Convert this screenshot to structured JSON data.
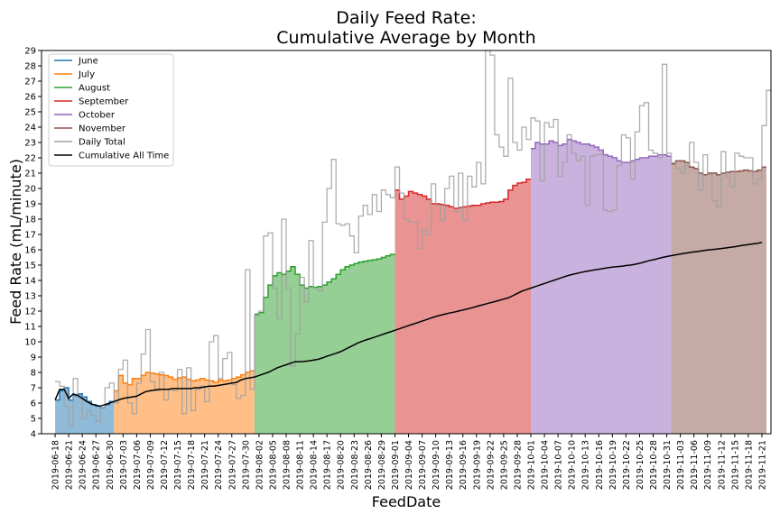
{
  "chart_data": {
    "type": "area",
    "title": [
      "Daily Feed Rate:",
      "Cumulative Average by Month"
    ],
    "xlabel": "FeedDate",
    "ylabel": "Feed Rate (mL/minute)",
    "ylim": [
      4,
      29
    ],
    "yticks": [
      4,
      5,
      6,
      7,
      8,
      9,
      10,
      11,
      12,
      13,
      14,
      15,
      16,
      17,
      18,
      19,
      20,
      21,
      22,
      23,
      24,
      25,
      26,
      27,
      28,
      29
    ],
    "xlim": [
      "2019-06-15",
      "2019-11-23"
    ],
    "xtick_start": "2019-06-18",
    "xtick_step_days": 3,
    "xtick_count": 53,
    "grid": false,
    "legend_position": "top-left",
    "series": [
      {
        "name": "June",
        "type": "cumulative-month",
        "color": "#1f77b4",
        "start": "2019-06-18",
        "values": [
          6.2,
          6.8,
          7.0,
          6.2,
          6.5,
          6.6,
          6.4,
          6.1,
          5.9,
          5.8,
          5.7,
          5.9,
          6.1
        ]
      },
      {
        "name": "July",
        "type": "cumulative-month",
        "color": "#ff7f0e",
        "start": "2019-07-01",
        "values": [
          6.8,
          7.8,
          7.3,
          7.2,
          7.6,
          7.6,
          7.8,
          8.0,
          7.95,
          7.9,
          7.85,
          7.8,
          7.7,
          7.55,
          7.65,
          7.7,
          7.55,
          7.45,
          7.5,
          7.6,
          7.5,
          7.45,
          7.35,
          7.5,
          7.45,
          7.5,
          7.6,
          7.7,
          7.85,
          8.0,
          8.1
        ]
      },
      {
        "name": "August",
        "type": "cumulative-month",
        "color": "#2ca02c",
        "start": "2019-08-01",
        "values": [
          11.8,
          11.9,
          12.9,
          13.7,
          14.3,
          14.5,
          14.4,
          14.6,
          14.9,
          14.4,
          13.7,
          13.5,
          13.6,
          13.55,
          13.6,
          13.7,
          13.9,
          14.1,
          14.4,
          14.7,
          14.9,
          15.0,
          15.1,
          15.2,
          15.25,
          15.3,
          15.35,
          15.4,
          15.5,
          15.6,
          15.7
        ]
      },
      {
        "name": "September",
        "type": "cumulative-month",
        "color": "#d62728",
        "start": "2019-09-01",
        "values": [
          19.9,
          19.3,
          19.5,
          19.8,
          19.7,
          19.6,
          19.5,
          19.3,
          19.0,
          19.0,
          18.95,
          18.9,
          18.8,
          18.7,
          18.75,
          18.8,
          18.85,
          18.9,
          18.9,
          19.0,
          19.05,
          19.1,
          19.1,
          19.15,
          19.3,
          19.9,
          20.2,
          20.35,
          20.4,
          20.6
        ]
      },
      {
        "name": "October",
        "type": "cumulative-month",
        "color": "#9467bd",
        "start": "2019-10-01",
        "values": [
          22.6,
          23.0,
          22.9,
          22.9,
          23.1,
          23.0,
          22.8,
          22.9,
          23.2,
          23.1,
          23.0,
          22.9,
          22.9,
          22.8,
          22.7,
          22.5,
          22.2,
          22.1,
          22.0,
          21.8,
          21.7,
          21.7,
          21.8,
          21.9,
          22.0,
          22.0,
          22.1,
          22.1,
          22.2,
          22.2,
          22.1
        ]
      },
      {
        "name": "November",
        "type": "cumulative-month",
        "color": "#8c564b",
        "start": "2019-11-01",
        "values": [
          21.6,
          21.8,
          21.8,
          21.7,
          21.4,
          21.3,
          21.0,
          20.9,
          21.0,
          21.0,
          20.9,
          21.0,
          21.05,
          21.1,
          21.1,
          21.15,
          21.2,
          21.15,
          21.1,
          21.2,
          21.4
        ]
      },
      {
        "name": "Daily Total",
        "type": "step",
        "color": "#a0a0a0",
        "start": "2019-06-18",
        "values": [
          7.4,
          7.1,
          5.8,
          4.5,
          7.6,
          6.4,
          5.0,
          5.5,
          5.2,
          4.8,
          5.7,
          7.0,
          7.3,
          6.0,
          8.2,
          8.8,
          6.0,
          5.3,
          7.3,
          9.2,
          10.8,
          7.4,
          6.8,
          8.0,
          6.2,
          6.9,
          6.8,
          8.2,
          5.3,
          8.3,
          5.5,
          6.9,
          7.1,
          6.1,
          10.0,
          10.4,
          7.6,
          8.9,
          9.3,
          7.2,
          6.3,
          6.5,
          14.7,
          6.9,
          11.7,
          12.0,
          16.9,
          17.1,
          13.5,
          11.5,
          18.0,
          13.5,
          8.4,
          10.5,
          14.2,
          12.6,
          16.6,
          13.5,
          13.3,
          17.8,
          20.0,
          21.9,
          17.7,
          17.6,
          17.7,
          16.9,
          15.8,
          18.2,
          18.9,
          18.3,
          19.6,
          18.5,
          19.9,
          19.6,
          19.4,
          21.4,
          19.7,
          18.0,
          17.8,
          17.8,
          16.1,
          17.3,
          17.0,
          20.3,
          18.9,
          17.9,
          20.0,
          20.8,
          18.5,
          21.0,
          17.9,
          20.8,
          20.1,
          21.7,
          20.3,
          29.0,
          28.7,
          23.5,
          22.7,
          22.1,
          27.2,
          23.0,
          22.5,
          24.0,
          23.2,
          24.6,
          24.4,
          20.5,
          24.3,
          24.0,
          24.5,
          20.8,
          21.7,
          23.5,
          22.3,
          21.8,
          22.1,
          18.9,
          22.1,
          22.2,
          22.2,
          18.6,
          18.5,
          18.6,
          21.5,
          23.5,
          23.3,
          20.6,
          23.7,
          25.4,
          25.6,
          22.5,
          22.3,
          22.0,
          28.1,
          22.3,
          21.7,
          21.3,
          21.0,
          21.5,
          23.0,
          21.7,
          19.9,
          22.2,
          20.9,
          19.2,
          18.8,
          22.4,
          20.8,
          20.1,
          22.3,
          22.1,
          22.0,
          22.0,
          20.3,
          20.6,
          24.1,
          26.4
        ]
      },
      {
        "name": "Cumulative All Time",
        "type": "line",
        "color": "#000000",
        "start": "2019-06-18",
        "values": [
          6.2,
          6.9,
          6.9,
          6.3,
          6.6,
          6.5,
          6.3,
          6.1,
          5.95,
          5.85,
          5.8,
          5.9,
          6.0,
          6.1,
          6.2,
          6.3,
          6.35,
          6.4,
          6.45,
          6.6,
          6.75,
          6.8,
          6.85,
          6.9,
          6.9,
          6.9,
          6.95,
          6.95,
          6.95,
          6.95,
          6.95,
          7.0,
          7.0,
          7.05,
          7.1,
          7.1,
          7.15,
          7.2,
          7.25,
          7.3,
          7.35,
          7.5,
          7.6,
          7.65,
          7.7,
          7.8,
          7.9,
          8.0,
          8.15,
          8.3,
          8.4,
          8.5,
          8.6,
          8.7,
          8.7,
          8.72,
          8.75,
          8.8,
          8.85,
          8.95,
          9.05,
          9.15,
          9.25,
          9.35,
          9.5,
          9.65,
          9.8,
          9.95,
          10.05,
          10.15,
          10.25,
          10.35,
          10.45,
          10.55,
          10.65,
          10.75,
          10.85,
          10.95,
          11.05,
          11.15,
          11.25,
          11.35,
          11.45,
          11.55,
          11.65,
          11.73,
          11.8,
          11.87,
          11.93,
          12.0,
          12.07,
          12.14,
          12.22,
          12.3,
          12.38,
          12.46,
          12.54,
          12.62,
          12.7,
          12.78,
          12.86,
          13.0,
          13.15,
          13.3,
          13.4,
          13.5,
          13.6,
          13.7,
          13.8,
          13.9,
          14.0,
          14.1,
          14.2,
          14.3,
          14.38,
          14.45,
          14.52,
          14.58,
          14.63,
          14.68,
          14.73,
          14.78,
          14.83,
          14.87,
          14.9,
          14.93,
          14.97,
          15.0,
          15.05,
          15.12,
          15.2,
          15.28,
          15.35,
          15.42,
          15.5,
          15.56,
          15.62,
          15.67,
          15.72,
          15.77,
          15.82,
          15.86,
          15.9,
          15.94,
          15.98,
          16.01,
          16.04,
          16.08,
          16.12,
          16.16,
          16.2,
          16.25,
          16.3,
          16.34,
          16.38,
          16.42,
          16.48
        ]
      }
    ]
  }
}
